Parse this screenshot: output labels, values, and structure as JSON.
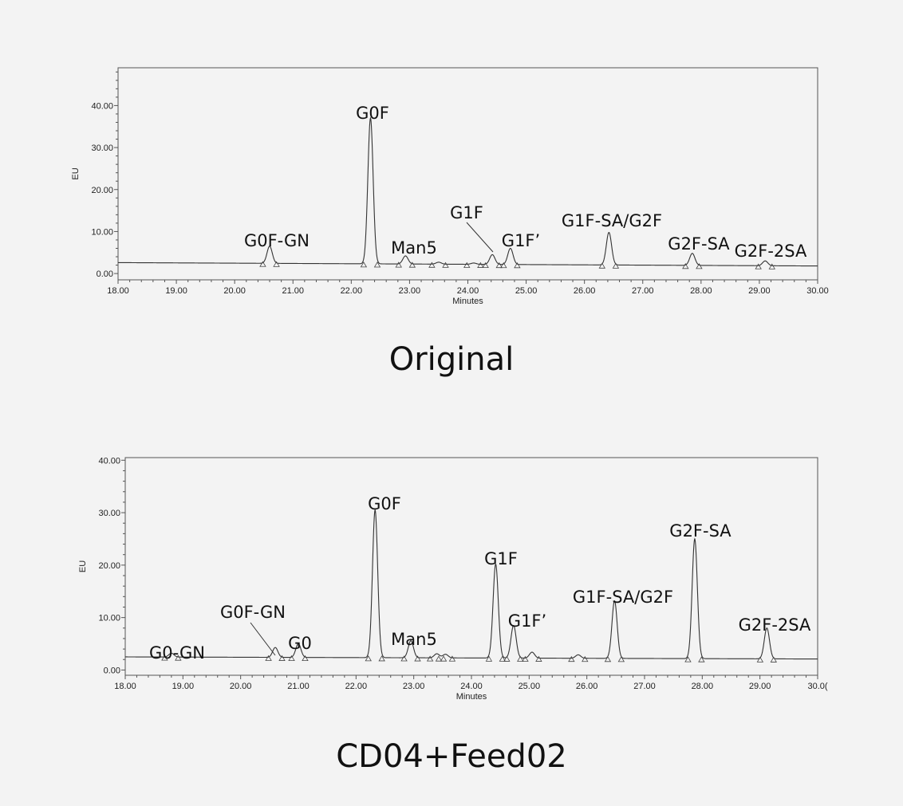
{
  "chart_data": [
    {
      "type": "line",
      "caption": "Original",
      "xlabel": "Minutes",
      "ylabel": "EU",
      "xlim": [
        18.0,
        30.0
      ],
      "ylim": [
        -1.5,
        49.0
      ],
      "x_ticks": [
        "18.00",
        "19.00",
        "20.00",
        "21.00",
        "22.00",
        "23.00",
        "24.00",
        "25.00",
        "26.00",
        "27.00",
        "28.00",
        "29.00",
        "30.00"
      ],
      "y_ticks": [
        "0.00",
        "10.00",
        "20.00",
        "30.00",
        "40.00"
      ],
      "baseline": [
        [
          18.0,
          2.6
        ],
        [
          30.0,
          1.8
        ]
      ],
      "peaks": [
        {
          "label": "G0F-GN",
          "rt": 20.6,
          "height": 6.5
        },
        {
          "label": "G0F",
          "rt": 22.33,
          "height": 37.0
        },
        {
          "label": "Man5",
          "rt": 22.93,
          "height": 4.2
        },
        {
          "label": "",
          "rt": 23.5,
          "height": 2.7
        },
        {
          "label": "",
          "rt": 24.1,
          "height": 2.5
        },
        {
          "label": "G1F",
          "rt": 24.42,
          "height": 4.5
        },
        {
          "label": "G1F’",
          "rt": 24.73,
          "height": 6.0
        },
        {
          "label": "G1F-SA/G2F",
          "rt": 26.42,
          "height": 9.8
        },
        {
          "label": "G2F-SA",
          "rt": 27.85,
          "height": 4.8
        },
        {
          "label": "G2F-2SA",
          "rt": 29.1,
          "height": 3.0
        }
      ]
    },
    {
      "type": "line",
      "caption": "CD04+Feed02",
      "xlabel": "Minutes",
      "ylabel": "EU",
      "xlim": [
        18.0,
        30.0
      ],
      "ylim": [
        -1.0,
        40.5
      ],
      "x_ticks": [
        "18.00",
        "19.00",
        "20.00",
        "21.00",
        "22.00",
        "23.00",
        "24.00",
        "25.00",
        "26.00",
        "27.00",
        "28.00",
        "29.00",
        "30.0("
      ],
      "y_ticks": [
        "0.00",
        "10.00",
        "20.00",
        "30.00",
        "40.00"
      ],
      "baseline": [
        [
          18.0,
          2.5
        ],
        [
          30.0,
          2.1
        ]
      ],
      "peaks": [
        {
          "label": "G0-GN",
          "rt": 18.8,
          "height": 3.2
        },
        {
          "label": "G0F-GN",
          "rt": 20.6,
          "height": 4.3
        },
        {
          "label": "G0",
          "rt": 21.0,
          "height": 5.0
        },
        {
          "label": "G0F",
          "rt": 22.33,
          "height": 30.5
        },
        {
          "label": "Man5",
          "rt": 22.95,
          "height": 5.6
        },
        {
          "label": "",
          "rt": 23.4,
          "height": 3.1
        },
        {
          "label": "",
          "rt": 23.55,
          "height": 3.0
        },
        {
          "label": "G1F",
          "rt": 24.42,
          "height": 20.2
        },
        {
          "label": "G1F’",
          "rt": 24.73,
          "height": 8.5
        },
        {
          "label": "",
          "rt": 25.05,
          "height": 3.4
        },
        {
          "label": "",
          "rt": 25.85,
          "height": 2.9
        },
        {
          "label": "G1F-SA/G2F",
          "rt": 26.48,
          "height": 13.2
        },
        {
          "label": "G2F-SA",
          "rt": 27.87,
          "height": 25.0
        },
        {
          "label": "G2F-2SA",
          "rt": 29.12,
          "height": 8.0
        }
      ]
    }
  ]
}
